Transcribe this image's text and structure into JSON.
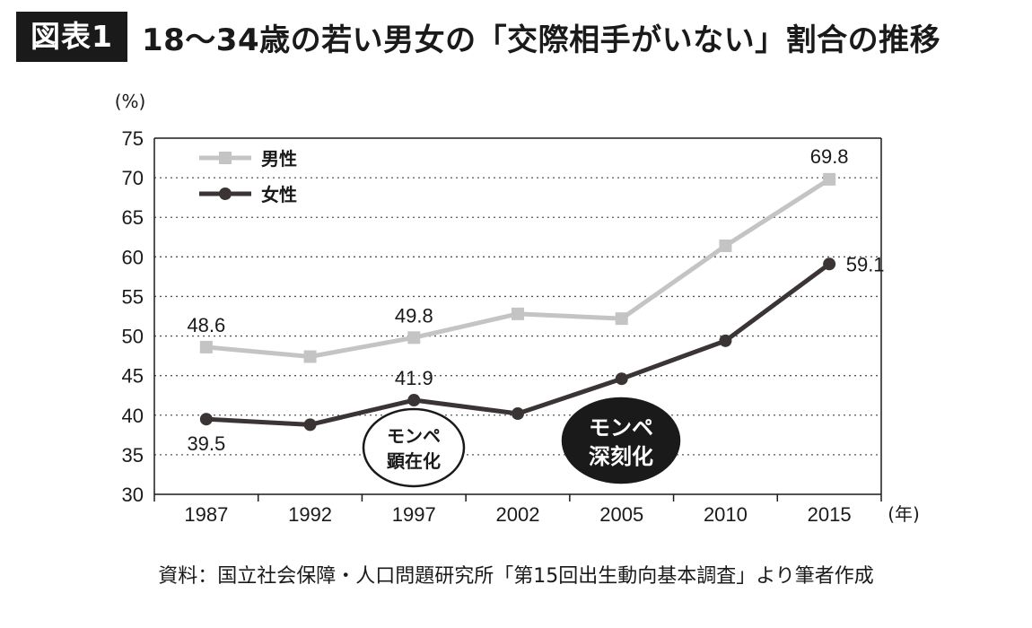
{
  "header": {
    "badge": "図表1",
    "title": "18〜34歳の若い男女の「交際相手がいない」割合の推移"
  },
  "chart_data": {
    "type": "line",
    "x": [
      "1987",
      "1992",
      "1997",
      "2002",
      "2005",
      "2010",
      "2015"
    ],
    "series": [
      {
        "name": "男性",
        "values": [
          48.6,
          47.4,
          49.8,
          52.8,
          52.2,
          61.4,
          69.8
        ],
        "color": "#c4c4c4",
        "marker": "square",
        "labels": [
          {
            "index": 0,
            "text": "48.6"
          },
          {
            "index": 2,
            "text": "49.8"
          },
          {
            "index": 6,
            "text": "69.8"
          }
        ]
      },
      {
        "name": "女性",
        "values": [
          39.5,
          38.8,
          41.9,
          40.2,
          44.6,
          49.4,
          59.1
        ],
        "color": "#3b3434",
        "marker": "circle",
        "labels": [
          {
            "index": 0,
            "text": "39.5"
          },
          {
            "index": 2,
            "text": "41.9"
          },
          {
            "index": 6,
            "text": "59.1"
          }
        ]
      }
    ],
    "ylim": [
      30,
      75
    ],
    "yticks": [
      "30",
      "35",
      "40",
      "45",
      "50",
      "55",
      "60",
      "65",
      "70",
      "75"
    ],
    "yunit": "(%)",
    "xunit": "(年)",
    "grid": "horizontal dotted",
    "legend_position": "top-left",
    "annotations": [
      {
        "lines": [
          "モンペ",
          "顕在化"
        ],
        "style": "outline",
        "near": "1997"
      },
      {
        "lines": [
          "モンペ",
          "深刻化"
        ],
        "style": "filled",
        "near": "2005"
      }
    ]
  },
  "source": "資料：国立社会保障・人口問題研究所「第15回出生動向基本調査」より筆者作成"
}
